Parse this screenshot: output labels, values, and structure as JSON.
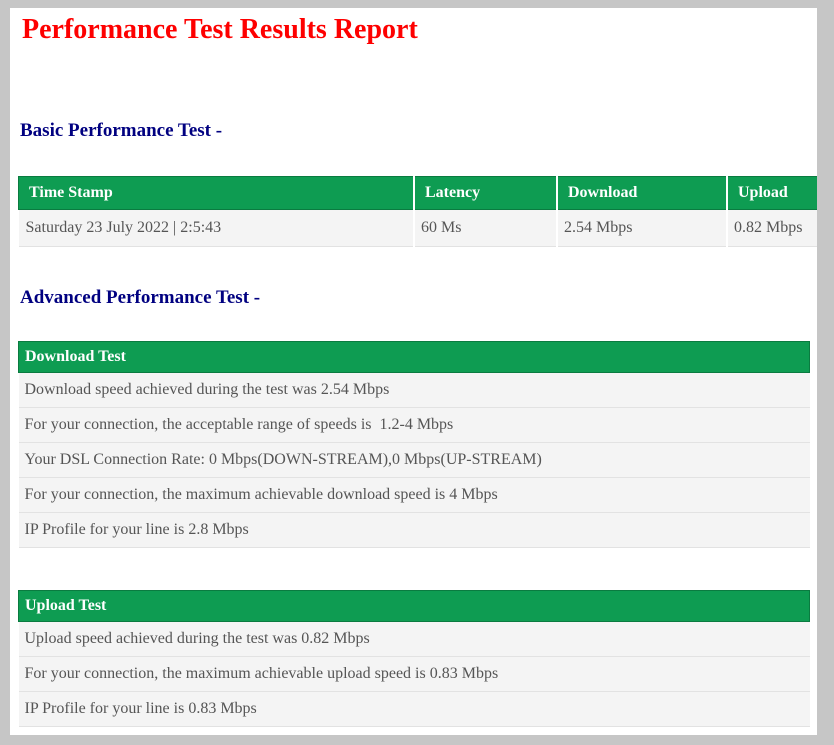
{
  "report": {
    "title": "Performance Test Results Report"
  },
  "colors": {
    "accent_green": "#0e9c52",
    "title_red": "#fe0000",
    "heading_navy": "#000080",
    "frame_gray": "#c6c6c6",
    "row_bg": "#f4f4f4"
  },
  "basic": {
    "heading": "Basic Performance Test -",
    "table": {
      "headers": [
        "Time Stamp",
        "Latency",
        "Download",
        "Upload"
      ],
      "row": {
        "time_stamp": "Saturday 23 July 2022 | 2:5:43",
        "latency": "60 Ms",
        "download": "2.54 Mbps",
        "upload": "0.82 Mbps"
      }
    }
  },
  "advanced": {
    "heading": "Advanced Performance Test -",
    "download_test": {
      "title": "Download Test",
      "rows": [
        "Download speed achieved during the test was 2.54 Mbps",
        "For your connection, the acceptable range of speeds is  1.2-4 Mbps",
        "Your DSL Connection Rate: 0 Mbps(DOWN-STREAM),0 Mbps(UP-STREAM)",
        "For your connection, the maximum achievable download speed is 4 Mbps",
        "IP Profile for your line is 2.8 Mbps"
      ]
    },
    "upload_test": {
      "title": "Upload Test",
      "rows": [
        "Upload speed achieved during the test was 0.82 Mbps",
        "For your connection, the maximum achievable upload speed is 0.83 Mbps",
        "IP Profile for your line is 0.83 Mbps"
      ]
    }
  }
}
